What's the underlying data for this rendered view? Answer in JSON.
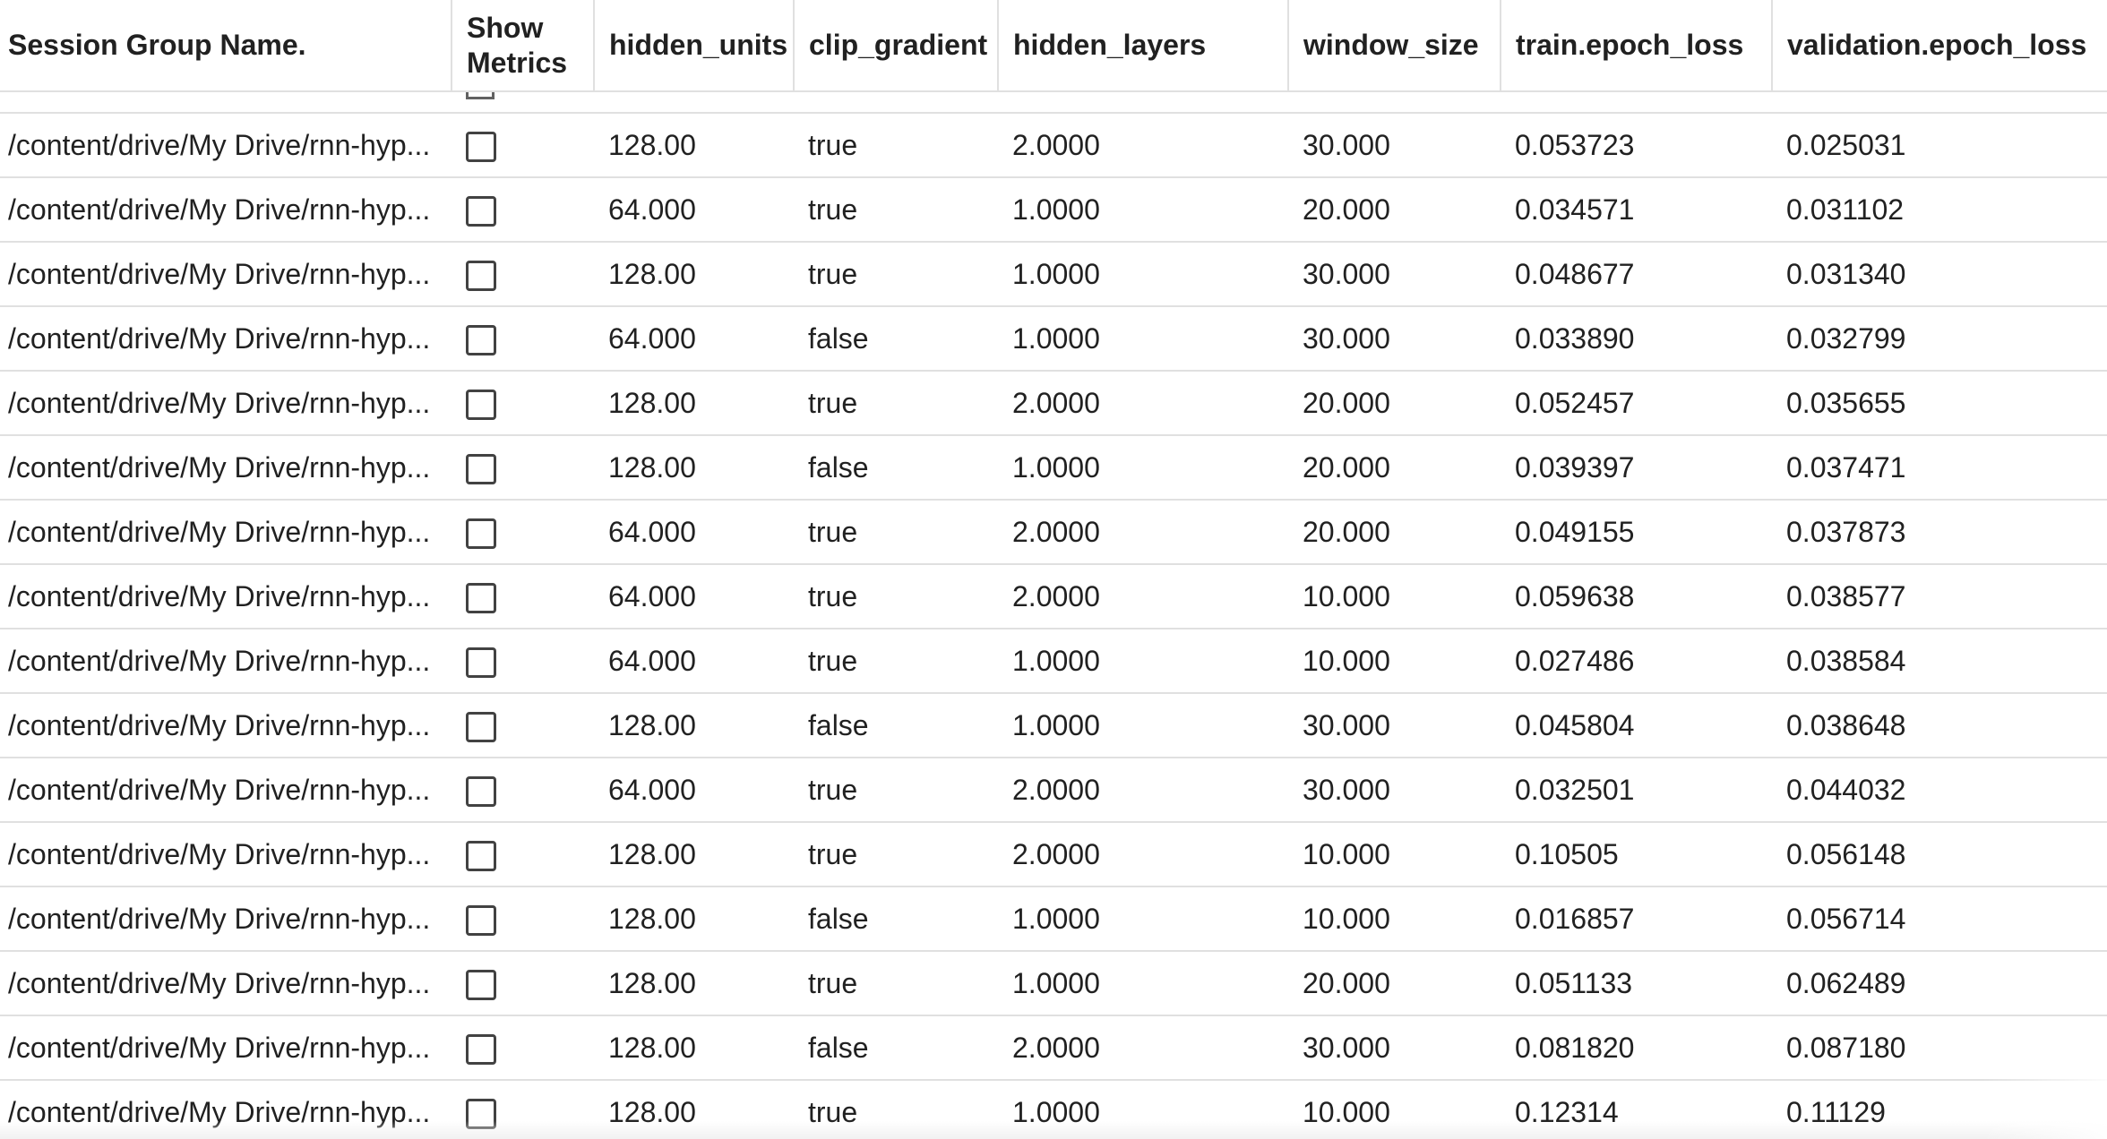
{
  "columns": [
    "Session Group Name.",
    "Show Metrics",
    "hidden_units",
    "clip_gradient",
    "hidden_layers",
    "window_size",
    "train.epoch_loss",
    "validation.epoch_loss"
  ],
  "show_metrics_header": [
    "Show",
    "Metrics"
  ],
  "rows": [
    {
      "name": "/content/drive/My Drive/rnn-hyp...",
      "hidden_units": "128.00",
      "clip_gradient": "true",
      "hidden_layers": "2.0000",
      "window_size": "30.000",
      "train_loss": "0.053723",
      "val_loss": "0.025031"
    },
    {
      "name": "/content/drive/My Drive/rnn-hyp...",
      "hidden_units": "64.000",
      "clip_gradient": "true",
      "hidden_layers": "1.0000",
      "window_size": "20.000",
      "train_loss": "0.034571",
      "val_loss": "0.031102"
    },
    {
      "name": "/content/drive/My Drive/rnn-hyp...",
      "hidden_units": "128.00",
      "clip_gradient": "true",
      "hidden_layers": "1.0000",
      "window_size": "30.000",
      "train_loss": "0.048677",
      "val_loss": "0.031340"
    },
    {
      "name": "/content/drive/My Drive/rnn-hyp...",
      "hidden_units": "64.000",
      "clip_gradient": "false",
      "hidden_layers": "1.0000",
      "window_size": "30.000",
      "train_loss": "0.033890",
      "val_loss": "0.032799"
    },
    {
      "name": "/content/drive/My Drive/rnn-hyp...",
      "hidden_units": "128.00",
      "clip_gradient": "true",
      "hidden_layers": "2.0000",
      "window_size": "20.000",
      "train_loss": "0.052457",
      "val_loss": "0.035655"
    },
    {
      "name": "/content/drive/My Drive/rnn-hyp...",
      "hidden_units": "128.00",
      "clip_gradient": "false",
      "hidden_layers": "1.0000",
      "window_size": "20.000",
      "train_loss": "0.039397",
      "val_loss": "0.037471"
    },
    {
      "name": "/content/drive/My Drive/rnn-hyp...",
      "hidden_units": "64.000",
      "clip_gradient": "true",
      "hidden_layers": "2.0000",
      "window_size": "20.000",
      "train_loss": "0.049155",
      "val_loss": "0.037873"
    },
    {
      "name": "/content/drive/My Drive/rnn-hyp...",
      "hidden_units": "64.000",
      "clip_gradient": "true",
      "hidden_layers": "2.0000",
      "window_size": "10.000",
      "train_loss": "0.059638",
      "val_loss": "0.038577"
    },
    {
      "name": "/content/drive/My Drive/rnn-hyp...",
      "hidden_units": "64.000",
      "clip_gradient": "true",
      "hidden_layers": "1.0000",
      "window_size": "10.000",
      "train_loss": "0.027486",
      "val_loss": "0.038584"
    },
    {
      "name": "/content/drive/My Drive/rnn-hyp...",
      "hidden_units": "128.00",
      "clip_gradient": "false",
      "hidden_layers": "1.0000",
      "window_size": "30.000",
      "train_loss": "0.045804",
      "val_loss": "0.038648"
    },
    {
      "name": "/content/drive/My Drive/rnn-hyp...",
      "hidden_units": "64.000",
      "clip_gradient": "true",
      "hidden_layers": "2.0000",
      "window_size": "30.000",
      "train_loss": "0.032501",
      "val_loss": "0.044032"
    },
    {
      "name": "/content/drive/My Drive/rnn-hyp...",
      "hidden_units": "128.00",
      "clip_gradient": "true",
      "hidden_layers": "2.0000",
      "window_size": "10.000",
      "train_loss": "0.10505",
      "val_loss": "0.056148"
    },
    {
      "name": "/content/drive/My Drive/rnn-hyp...",
      "hidden_units": "128.00",
      "clip_gradient": "false",
      "hidden_layers": "1.0000",
      "window_size": "10.000",
      "train_loss": "0.016857",
      "val_loss": "0.056714"
    },
    {
      "name": "/content/drive/My Drive/rnn-hyp...",
      "hidden_units": "128.00",
      "clip_gradient": "true",
      "hidden_layers": "1.0000",
      "window_size": "20.000",
      "train_loss": "0.051133",
      "val_loss": "0.062489"
    },
    {
      "name": "/content/drive/My Drive/rnn-hyp...",
      "hidden_units": "128.00",
      "clip_gradient": "false",
      "hidden_layers": "2.0000",
      "window_size": "30.000",
      "train_loss": "0.081820",
      "val_loss": "0.087180"
    },
    {
      "name": "/content/drive/My Drive/rnn-hyp...",
      "hidden_units": "128.00",
      "clip_gradient": "true",
      "hidden_layers": "1.0000",
      "window_size": "10.000",
      "train_loss": "0.12314",
      "val_loss": "0.11129"
    }
  ]
}
